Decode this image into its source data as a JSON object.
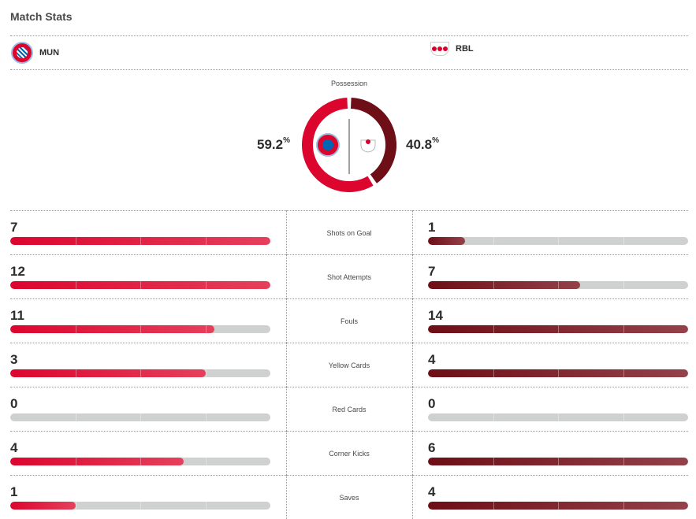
{
  "title": "Match Stats",
  "home": {
    "abbr": "MUN",
    "possession": "59.2",
    "possession_value": 59.2,
    "color": "#dc052d"
  },
  "away": {
    "abbr": "RBL",
    "possession": "40.8",
    "possession_value": 40.8,
    "color": "#6e0e16"
  },
  "possession_label": "Possession",
  "percent_sign": "%",
  "stats": [
    {
      "label": "Shots on Goal",
      "home": "7",
      "away": "1"
    },
    {
      "label": "Shot Attempts",
      "home": "12",
      "away": "7"
    },
    {
      "label": "Fouls",
      "home": "11",
      "away": "14"
    },
    {
      "label": "Yellow Cards",
      "home": "3",
      "away": "4"
    },
    {
      "label": "Red Cards",
      "home": "0",
      "away": "0"
    },
    {
      "label": "Corner Kicks",
      "home": "4",
      "away": "6"
    },
    {
      "label": "Saves",
      "home": "1",
      "away": "4"
    }
  ]
}
